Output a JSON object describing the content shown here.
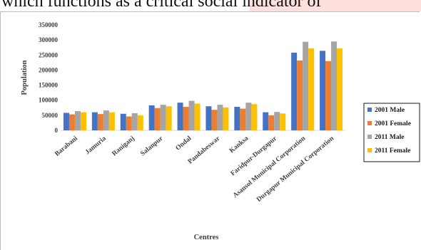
{
  "caption": {
    "text": "which functions as a critical social indicator of"
  },
  "colors": {
    "2001 Male": "#4472c4",
    "2001 Female": "#ed7d31",
    "2011 Male": "#a5a5a5",
    "2011 Female": "#ffc000"
  },
  "chart_data": {
    "type": "bar",
    "title": "",
    "xlabel": "Centres",
    "ylabel": "Population",
    "ylim": [
      0,
      350000
    ],
    "yticks": [
      "0",
      "50000",
      "100000",
      "150000",
      "200000",
      "250000",
      "300000",
      "350000"
    ],
    "grid": false,
    "legend_position": "right",
    "categories": [
      "Barabani",
      "Jamuria",
      "Raniganj",
      "Salanpur",
      "Ondal",
      "Pandabeswar",
      "Kanksa",
      "Faridpur-Durgapur",
      "Asansol Municipal Corporation",
      "Durgapur Municipal Corporation"
    ],
    "series": [
      {
        "name": "2001 Male",
        "values": [
          58000,
          60000,
          55000,
          83000,
          92000,
          80000,
          78000,
          60000,
          258000,
          264000
        ]
      },
      {
        "name": "2001 Female",
        "values": [
          53000,
          54000,
          46000,
          74000,
          78000,
          68000,
          72000,
          50000,
          232000,
          230000
        ]
      },
      {
        "name": "2011 Male",
        "values": [
          64000,
          66000,
          57000,
          85000,
          98000,
          85000,
          92000,
          61000,
          294000,
          295000
        ]
      },
      {
        "name": "2011 Female",
        "values": [
          60000,
          60000,
          50000,
          80000,
          89000,
          76000,
          87000,
          56000,
          272000,
          272000
        ]
      }
    ]
  }
}
